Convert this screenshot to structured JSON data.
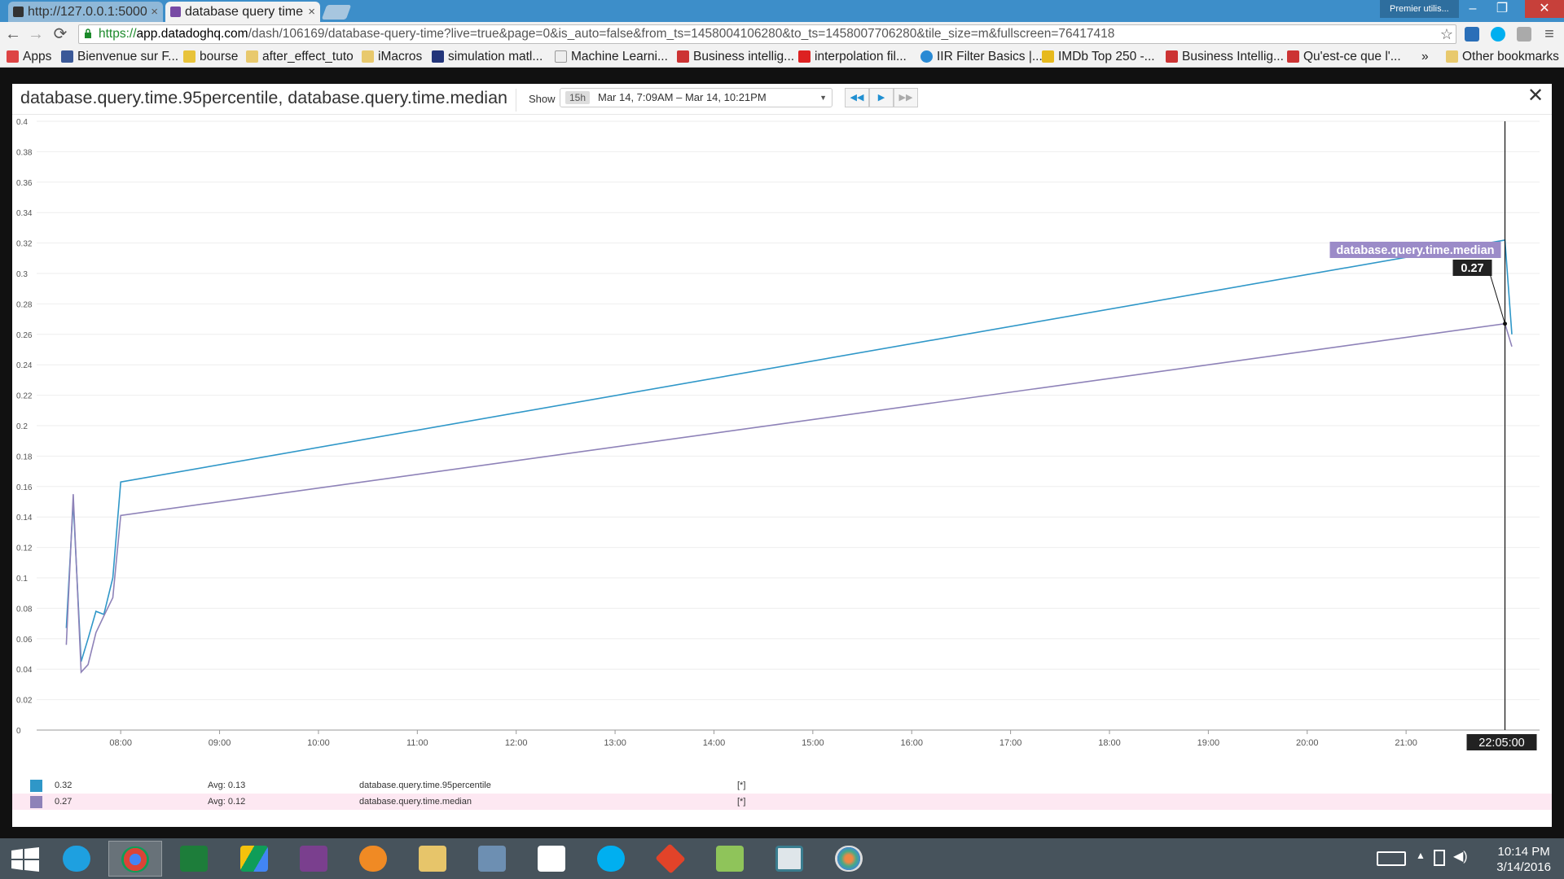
{
  "browser": {
    "tabs": [
      {
        "title": "http://127.0.0.1:5000",
        "active": false
      },
      {
        "title": "database query time",
        "active": true
      }
    ],
    "profile_label": "Premier utilis...",
    "url_scheme": "https://",
    "url_host": "app.datadoghq.com",
    "url_path": "/dash/106169/database-query-time?live=true&page=0&is_auto=false&from_ts=1458004106280&to_ts=1458007706280&tile_size=m&fullscreen=76417418",
    "bookmarks": [
      "Apps",
      "Bienvenue sur F...",
      "bourse",
      "after_effect_tuto",
      "iMacros",
      "simulation matl...",
      "Machine Learni...",
      "Business intellig...",
      "interpolation fil...",
      "IIR Filter Basics |...",
      "IMDb Top 250 -...",
      "Business Intellig...",
      "Qu'est-ce que l'..."
    ],
    "bookmarks_overflow": "»",
    "other_bookmarks": "Other bookmarks"
  },
  "modal": {
    "title": "database.query.time.95percentile, database.query.time.median",
    "show_label": "Show",
    "time_badge": "15h",
    "time_range": "Mar 14, 7:09AM – Mar 14, 10:21PM",
    "close_glyph": "✕"
  },
  "chart_data": {
    "type": "line",
    "y_ticks": [
      "0",
      "0.02",
      "0.04",
      "0.06",
      "0.08",
      "0.1",
      "0.12",
      "0.14",
      "0.16",
      "0.18",
      "0.2",
      "0.22",
      "0.24",
      "0.26",
      "0.28",
      "0.3",
      "0.32",
      "0.34",
      "0.36",
      "0.38",
      "0.4"
    ],
    "ylim": [
      0,
      0.4
    ],
    "x_ticks": [
      "08:00",
      "09:00",
      "10:00",
      "11:00",
      "12:00",
      "13:00",
      "14:00",
      "15:00",
      "16:00",
      "17:00",
      "18:00",
      "19:00",
      "20:00",
      "21:00"
    ],
    "x_tick_hours": [
      8,
      9,
      10,
      11,
      12,
      13,
      14,
      15,
      16,
      17,
      18,
      19,
      20,
      21
    ],
    "xlim_hours": [
      7.15,
      22.35
    ],
    "grid": true,
    "series": [
      {
        "name": "database.query.time.95percentile",
        "color": "#2f97c8",
        "x_hours": [
          7.45,
          7.52,
          7.6,
          7.67,
          7.75,
          7.83,
          7.92,
          8.0,
          22.0,
          22.07
        ],
        "values": [
          0.067,
          0.15,
          0.045,
          0.06,
          0.078,
          0.076,
          0.1,
          0.163,
          0.322,
          0.26
        ]
      },
      {
        "name": "database.query.time.median",
        "color": "#8e82b8",
        "x_hours": [
          7.45,
          7.52,
          7.6,
          7.67,
          7.75,
          7.83,
          7.92,
          8.0,
          22.0,
          22.07
        ],
        "values": [
          0.056,
          0.155,
          0.038,
          0.043,
          0.064,
          0.075,
          0.087,
          0.141,
          0.267,
          0.252
        ]
      }
    ],
    "cursor": {
      "time_label": "22:05:00",
      "x_hours": 22.0,
      "tooltip_series": "database.query.time.median",
      "tooltip_value": "0.27",
      "marker_value": 0.267
    }
  },
  "legend": [
    {
      "value": "0.32",
      "avg": "Avg: 0.13",
      "name": "database.query.time.95percentile",
      "flag": "[*]",
      "color": "#2f97c8"
    },
    {
      "value": "0.27",
      "avg": "Avg: 0.12",
      "name": "database.query.time.median",
      "flag": "[*]",
      "color": "#8e82b8"
    }
  ],
  "taskbar": {
    "apps": [
      "windows-start",
      "internet-explorer",
      "chrome",
      "excel",
      "google-drive",
      "winrar",
      "media-player",
      "file-explorer",
      "virtualbox",
      "apps-grid",
      "skype",
      "git",
      "notepad-plus",
      "window-app",
      "paint"
    ],
    "time": "10:14 PM",
    "date": "3/14/2016"
  }
}
